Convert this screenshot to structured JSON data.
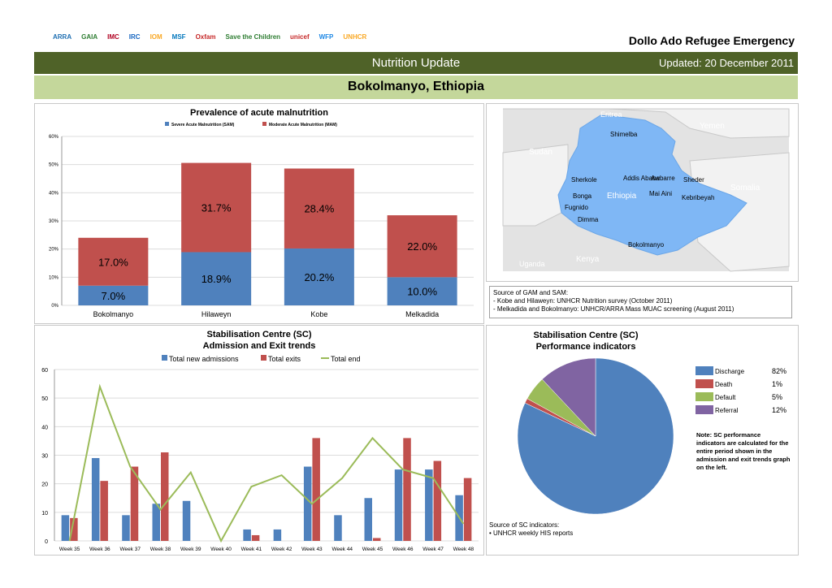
{
  "header": {
    "logos": [
      "ARRA",
      "GAIA",
      "IMC",
      "IRC",
      "IOM",
      "MSF",
      "Oxfam",
      "Save the Children",
      "unicef",
      "WFP",
      "UNHCR"
    ],
    "title": "Dollo Ado Refugee Emergency",
    "banner": "Nutrition Update",
    "updated": "Updated: 20 December 2011",
    "location": "Bokolmanyo, Ethiopia"
  },
  "map": {
    "places": [
      "Eritrea",
      "Shimelba",
      "Yemen",
      "Sudan",
      "Sherkole",
      "Addis Ababa",
      "Awbarre",
      "Sheder",
      "Mai Aini",
      "Kebribeyah",
      "Ethiopia",
      "Somalia",
      "Bonga",
      "Fugnido",
      "Dimma",
      "Bokolmanyo",
      "Kenya",
      "Uganda"
    ]
  },
  "source_gam": {
    "title": "Source of GAM and SAM:",
    "lines": [
      "- Kobe and Hilaweyn: UNHCR Nutrition survey (October 2011)",
      "-  Melkadida and Bokolmanyo: UNHCR/ARRA Mass MUAC screening (August 2011)"
    ]
  },
  "source_sc": {
    "title": "Source of SC indicators:",
    "lines": [
      "UNHCR weekly HIS reports"
    ]
  },
  "pie_note": "Note: SC performance indicators are calculated for the entire period shown in the admission and exit trends graph on the left.",
  "chart_data": [
    {
      "type": "bar",
      "stacked": true,
      "title": "Prevalence of acute malnutrition",
      "categories": [
        "Bokolmanyo",
        "Hilaweyn",
        "Kobe",
        "Melkadida"
      ],
      "series": [
        {
          "name": "Severe Acute Malnutrition (SAM)",
          "values": [
            7.0,
            18.9,
            20.2,
            10.0
          ],
          "labels": [
            "7.0%",
            "18.9%",
            "20.2%",
            "10.0%"
          ],
          "color": "#4f81bd"
        },
        {
          "name": "Moderate Acute Malnutrition (MAM)",
          "values": [
            17.0,
            31.7,
            28.4,
            22.0
          ],
          "labels": [
            "17.0%",
            "31.7%",
            "28.4%",
            "22.0%"
          ],
          "color": "#c0504d"
        }
      ],
      "yticks": [
        "0%",
        "10%",
        "20%",
        "30%",
        "40%",
        "50%",
        "60%"
      ],
      "ylim": [
        0,
        60
      ],
      "grid": true,
      "legend": "top"
    },
    {
      "type": "bar",
      "title": "Stabilisation Centre (SC)",
      "subtitle": "Admission and Exit trends",
      "categories": [
        "Week 35",
        "Week 36",
        "Week 37",
        "Week 38",
        "Week 39",
        "Week 40",
        "Week 41",
        "Week 42",
        "Week 43",
        "Week 44",
        "Week 45",
        "Week 46",
        "Week 47",
        "Week 48"
      ],
      "series": [
        {
          "name": "Total new admissions",
          "type": "bar",
          "values": [
            9,
            29,
            9,
            13,
            14,
            0,
            4,
            4,
            26,
            9,
            15,
            25,
            25,
            16
          ],
          "color": "#4f81bd"
        },
        {
          "name": "Total exits",
          "type": "bar",
          "values": [
            8,
            21,
            26,
            31,
            0,
            0,
            2,
            0,
            36,
            0,
            1,
            36,
            28,
            22
          ],
          "color": "#c0504d"
        },
        {
          "name": "Total end",
          "type": "line",
          "values": [
            0,
            54,
            26,
            11,
            24,
            0,
            19,
            23,
            13,
            22,
            36,
            25,
            22,
            6
          ],
          "color": "#9bbb59"
        }
      ],
      "yticks": [
        "0",
        "10",
        "20",
        "30",
        "40",
        "50",
        "60"
      ],
      "ylim": [
        0,
        60
      ],
      "grid": true,
      "legend": "top"
    },
    {
      "type": "pie",
      "title": "Stabilisation Centre (SC)",
      "subtitle": "Performance indicators",
      "slices": [
        {
          "name": "Discharge",
          "value": 82,
          "label": "82%",
          "color": "#4f81bd"
        },
        {
          "name": "Death",
          "value": 1,
          "label": "1%",
          "color": "#c0504d"
        },
        {
          "name": "Default",
          "value": 5,
          "label": "5%",
          "color": "#9bbb59"
        },
        {
          "name": "Referral",
          "value": 12,
          "label": "12%",
          "color": "#8064a2"
        }
      ],
      "legend": "right"
    }
  ]
}
